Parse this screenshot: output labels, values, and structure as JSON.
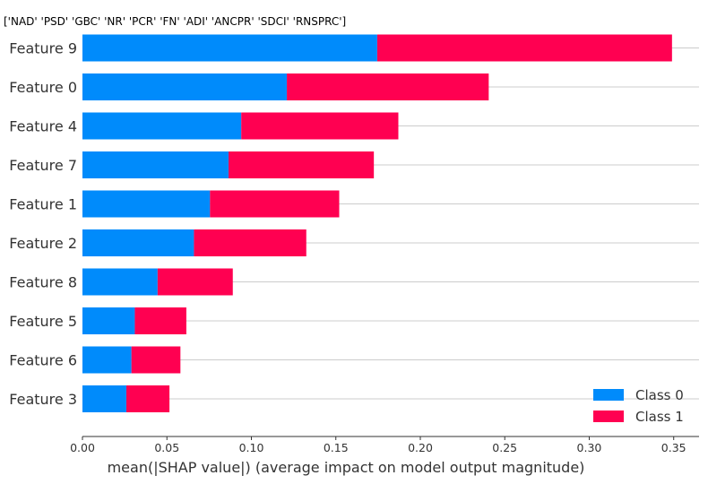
{
  "title": "['NAD' 'PSD' 'GBC' 'NR' 'PCR' 'FN' 'ADI' 'ANCPR' 'SDCI' 'RNSPRC']",
  "chart_data": {
    "type": "bar",
    "orientation": "horizontal",
    "stacked": true,
    "categories": [
      "Feature 9",
      "Feature 0",
      "Feature 4",
      "Feature 7",
      "Feature 1",
      "Feature 2",
      "Feature 8",
      "Feature 5",
      "Feature 6",
      "Feature 3"
    ],
    "series": [
      {
        "name": "Class 0",
        "color": "#008bfb",
        "values": [
          0.1745,
          0.121,
          0.094,
          0.0865,
          0.0755,
          0.066,
          0.0445,
          0.031,
          0.029,
          0.026
        ]
      },
      {
        "name": "Class 1",
        "color": "#ff0051",
        "values": [
          0.1745,
          0.1195,
          0.093,
          0.086,
          0.0765,
          0.0665,
          0.0445,
          0.0305,
          0.029,
          0.0255
        ]
      }
    ],
    "xlabel": "mean(|SHAP value|) (average impact on model output magnitude)",
    "ylabel": "",
    "xlim": [
      0,
      0.365
    ],
    "xticks": [
      0.0,
      0.05,
      0.1,
      0.15,
      0.2,
      0.25,
      0.3,
      0.35
    ],
    "xtick_labels": [
      "0.00",
      "0.05",
      "0.10",
      "0.15",
      "0.20",
      "0.25",
      "0.30",
      "0.35"
    ],
    "grid": "horizontal",
    "legend_position": "bottom-right"
  }
}
